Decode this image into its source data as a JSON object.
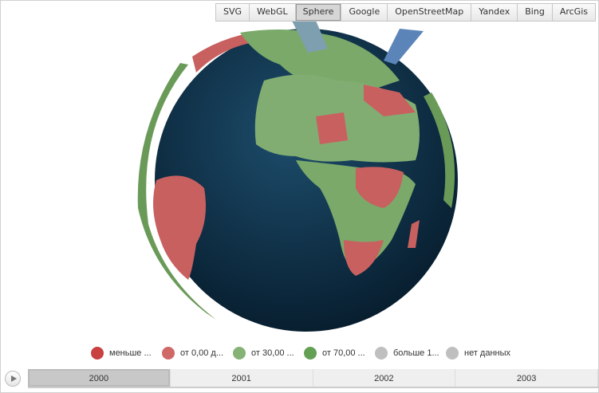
{
  "toolbar": {
    "buttons": [
      "SVG",
      "WebGL",
      "Sphere",
      "Google",
      "OpenStreetMap",
      "Yandex",
      "Bing",
      "ArcGis"
    ],
    "active": "Sphere"
  },
  "legend": {
    "items": [
      {
        "label": "меньше ...",
        "color": "#c94040"
      },
      {
        "label": "от 0,00 д...",
        "color": "#d06868"
      },
      {
        "label": "от 30,00 ...",
        "color": "#86b275"
      },
      {
        "label": "от 70,00 ...",
        "color": "#64a054"
      },
      {
        "label": "больше 1...",
        "color": "#bfbfbf"
      },
      {
        "label": "нет данных",
        "color": "#bfbfbf"
      }
    ]
  },
  "timeline": {
    "years": [
      "2000",
      "2001",
      "2002",
      "2003"
    ],
    "active": "2000"
  },
  "colors": {
    "ocean": "#0f3550",
    "land_green": "#7aa96a",
    "land_red": "#c86060"
  }
}
